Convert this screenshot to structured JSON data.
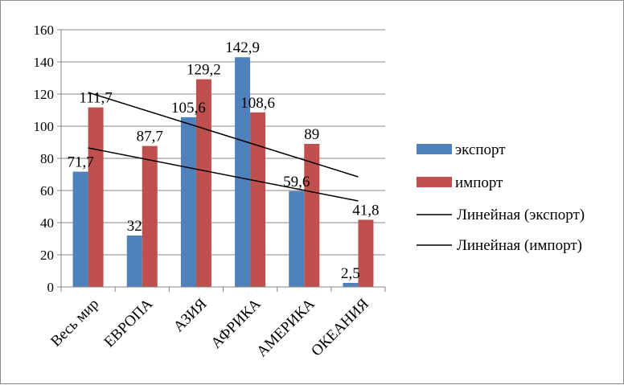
{
  "chart_data": {
    "type": "bar",
    "categories": [
      "Весь мир",
      "ЕВРОПА",
      "АЗИЯ",
      "АФРИКА",
      "АМЕРИКА",
      "ОКЕАНИЯ"
    ],
    "series": [
      {
        "name": "экспорт",
        "color": "#4f81bd",
        "values": [
          71.7,
          32,
          105.6,
          142.9,
          59.6,
          2.5
        ],
        "labels": [
          "71,7",
          "32",
          "105,6",
          "142,9",
          "59,6",
          "2,5"
        ]
      },
      {
        "name": "импорт",
        "color": "#c0504d",
        "values": [
          111.7,
          87.7,
          129.2,
          108.6,
          89,
          41.8
        ],
        "labels": [
          "111,7",
          "87,7",
          "129,2",
          "108,6",
          "89",
          "41,8"
        ]
      }
    ],
    "trendlines": [
      {
        "name": "Линейная (экспорт)",
        "color": "#000000",
        "start": 86.5,
        "end": 53.5
      },
      {
        "name": "Линейная (импорт)",
        "color": "#000000",
        "start": 121,
        "end": 68.5
      }
    ],
    "ylim": [
      0,
      160
    ],
    "yticks": [
      0,
      20,
      40,
      60,
      80,
      100,
      120,
      140,
      160
    ],
    "grid": true,
    "legend_position": "right"
  }
}
